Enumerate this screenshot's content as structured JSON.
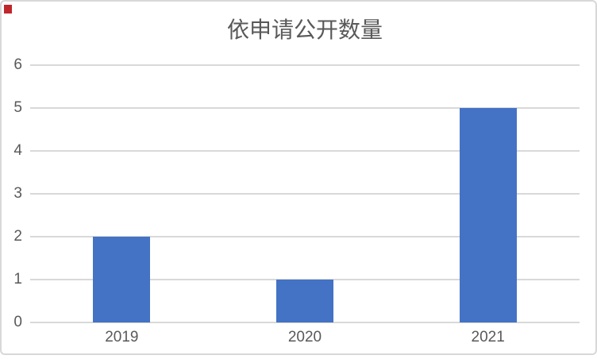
{
  "page": {
    "background": "#ffffff"
  },
  "card": {
    "border_color": "#d8d8d8"
  },
  "marker": {
    "color": "#c0272d"
  },
  "chart_data": {
    "type": "bar",
    "title": "依申请公开数量",
    "categories": [
      "2019",
      "2020",
      "2021"
    ],
    "values": [
      2,
      1,
      5
    ],
    "y_ticks": [
      0,
      1,
      2,
      3,
      4,
      5,
      6
    ],
    "ylim": [
      0,
      6
    ],
    "xlabel": "",
    "ylabel": "",
    "grid": true,
    "legend": "none",
    "bar_color": "#4472c4",
    "gridline_color": "#d9d9d9",
    "axis_text_color": "#595959",
    "title_color": "#595959"
  }
}
